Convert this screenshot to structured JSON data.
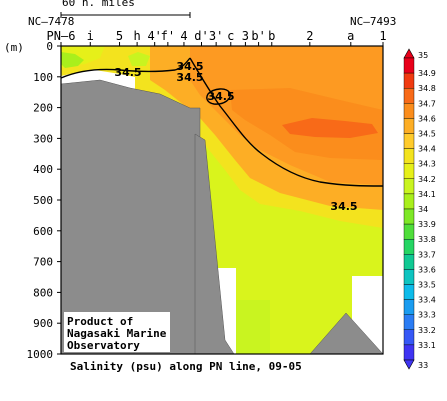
{
  "chart_data": {
    "type": "heatmap",
    "title": "Salinity (psu) along PN line, 09-05",
    "ylabel": "(m)",
    "ylim": [
      0,
      1000
    ],
    "yticks": [
      0,
      100,
      200,
      300,
      400,
      500,
      600,
      700,
      800,
      900,
      1000
    ],
    "stations": [
      {
        "label": "PN–6",
        "x": 0
      },
      {
        "label": "i",
        "x": 1
      },
      {
        "label": "5",
        "x": 2
      },
      {
        "label": "h",
        "x": 2.6
      },
      {
        "label": "4'",
        "x": 3.2
      },
      {
        "label": "f'",
        "x": 3.65
      },
      {
        "label": "4",
        "x": 4.2
      },
      {
        "label": "d'",
        "x": 4.8
      },
      {
        "label": "3'",
        "x": 5.3
      },
      {
        "label": "c",
        "x": 5.8
      },
      {
        "label": "3",
        "x": 6.3
      },
      {
        "label": "b'",
        "x": 6.75
      },
      {
        "label": "b",
        "x": 7.2
      },
      {
        "label": "2",
        "x": 8.5
      },
      {
        "label": "a",
        "x": 9.9
      },
      {
        "label": "1",
        "x": 11
      }
    ],
    "endpoint_labels": {
      "left": "NC–7478",
      "right": "NC–7493"
    },
    "scale_bar_label": "60  n. miles",
    "contour_labels": [
      "34.5",
      "34.5",
      "34.5",
      "34.5",
      "34.5"
    ],
    "colorbar": {
      "levels": [
        35,
        34.9,
        34.8,
        34.7,
        34.6,
        34.5,
        34.4,
        34.3,
        34.2,
        34.1,
        34,
        33.9,
        33.8,
        33.7,
        33.6,
        33.5,
        33.4,
        33.3,
        33.2,
        33.1,
        33
      ],
      "colors": [
        "#e8001a",
        "#f03a10",
        "#f86a18",
        "#fb8d1c",
        "#fdae25",
        "#ffcb2c",
        "#f3e31e",
        "#e6f019",
        "#c9f420",
        "#a9ef1c",
        "#7ee827",
        "#4fde3b",
        "#25d563",
        "#10c993",
        "#0ec4c0",
        "#0dbbea",
        "#1a9cf0",
        "#2a7cf4",
        "#3658f6",
        "#3f34f2"
      ]
    },
    "credit": [
      "Product of",
      "Nagasaki Marine",
      "Observatory"
    ]
  }
}
